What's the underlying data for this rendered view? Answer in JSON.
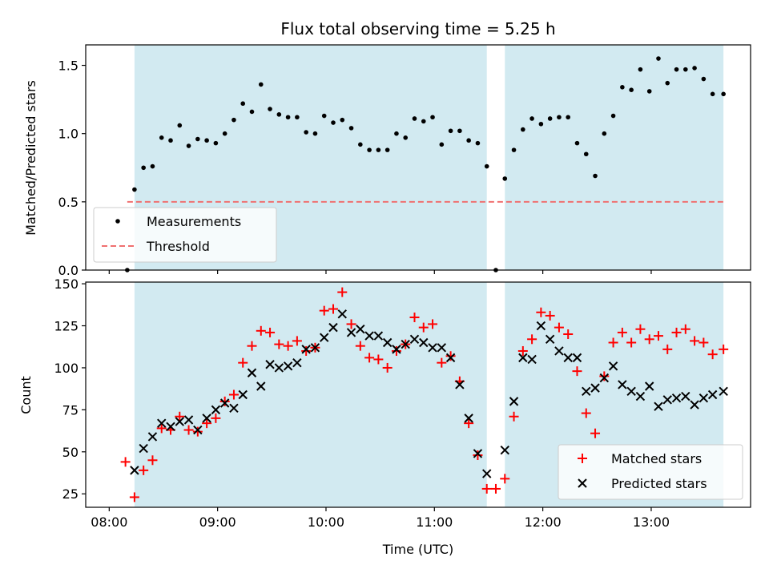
{
  "colors": {
    "observing_window": "#add8e6",
    "measurement": "#000000",
    "threshold": "#f07070",
    "matched": "#ff0000",
    "predicted": "#000000"
  },
  "chart_data": [
    {
      "type": "scatter",
      "title": "Flux total observing time = 5.25 h",
      "xlabel": "",
      "ylabel": "Matched/Predicted stars",
      "xlim": [
        "07:47",
        "13:55"
      ],
      "ylim": [
        0,
        1.65
      ],
      "yticks": [
        0.0,
        0.5,
        1.0,
        1.5
      ],
      "ytick_labels": [
        "0.0",
        "0.5",
        "1.0",
        "1.5"
      ],
      "xticks": [
        "08:00",
        "09:00",
        "10:00",
        "11:00",
        "12:00",
        "13:00"
      ],
      "observing_windows": [
        [
          "08:14",
          "11:29"
        ],
        [
          "11:39",
          "13:40"
        ]
      ],
      "threshold": {
        "value": 0.5,
        "x_start": "08:10",
        "x_end": "13:40"
      },
      "legend": {
        "position": "lower-left",
        "entries": [
          "Measurements",
          "Threshold"
        ]
      },
      "series": [
        {
          "name": "Measurements",
          "marker": "dot",
          "points": [
            [
              "08:10",
              0.0
            ],
            [
              "08:14",
              0.59
            ],
            [
              "08:19",
              0.75
            ],
            [
              "08:24",
              0.76
            ],
            [
              "08:29",
              0.97
            ],
            [
              "08:34",
              0.95
            ],
            [
              "08:39",
              1.06
            ],
            [
              "08:44",
              0.91
            ],
            [
              "08:49",
              0.96
            ],
            [
              "08:54",
              0.95
            ],
            [
              "08:59",
              0.93
            ],
            [
              "09:04",
              1.0
            ],
            [
              "09:09",
              1.1
            ],
            [
              "09:14",
              1.22
            ],
            [
              "09:19",
              1.16
            ],
            [
              "09:24",
              1.36
            ],
            [
              "09:29",
              1.18
            ],
            [
              "09:34",
              1.14
            ],
            [
              "09:39",
              1.12
            ],
            [
              "09:44",
              1.12
            ],
            [
              "09:49",
              1.01
            ],
            [
              "09:54",
              1.0
            ],
            [
              "09:59",
              1.13
            ],
            [
              "10:04",
              1.08
            ],
            [
              "10:09",
              1.1
            ],
            [
              "10:14",
              1.04
            ],
            [
              "10:19",
              0.92
            ],
            [
              "10:24",
              0.88
            ],
            [
              "10:29",
              0.88
            ],
            [
              "10:34",
              0.88
            ],
            [
              "10:39",
              1.0
            ],
            [
              "10:44",
              0.97
            ],
            [
              "10:49",
              1.11
            ],
            [
              "10:54",
              1.09
            ],
            [
              "10:59",
              1.12
            ],
            [
              "11:04",
              0.92
            ],
            [
              "11:09",
              1.02
            ],
            [
              "11:14",
              1.02
            ],
            [
              "11:19",
              0.95
            ],
            [
              "11:24",
              0.93
            ],
            [
              "11:29",
              0.76
            ],
            [
              "11:34",
              0.0
            ],
            [
              "11:39",
              0.67
            ],
            [
              "11:44",
              0.88
            ],
            [
              "11:49",
              1.03
            ],
            [
              "11:54",
              1.11
            ],
            [
              "11:59",
              1.07
            ],
            [
              "12:04",
              1.11
            ],
            [
              "12:09",
              1.12
            ],
            [
              "12:14",
              1.12
            ],
            [
              "12:19",
              0.93
            ],
            [
              "12:24",
              0.85
            ],
            [
              "12:29",
              0.69
            ],
            [
              "12:34",
              1.0
            ],
            [
              "12:39",
              1.13
            ],
            [
              "12:44",
              1.34
            ],
            [
              "12:49",
              1.32
            ],
            [
              "12:54",
              1.47
            ],
            [
              "12:59",
              1.31
            ],
            [
              "13:04",
              1.55
            ],
            [
              "13:09",
              1.37
            ],
            [
              "13:14",
              1.47
            ],
            [
              "13:19",
              1.47
            ],
            [
              "13:24",
              1.48
            ],
            [
              "13:29",
              1.4
            ],
            [
              "13:34",
              1.29
            ],
            [
              "13:40",
              1.29
            ]
          ]
        }
      ]
    },
    {
      "type": "scatter",
      "title": "",
      "xlabel": "Time (UTC)",
      "ylabel": "Count",
      "xlim": [
        "07:47",
        "13:55"
      ],
      "ylim": [
        17,
        151
      ],
      "yticks": [
        25,
        50,
        75,
        100,
        125,
        150
      ],
      "ytick_labels": [
        "25",
        "50",
        "75",
        "100",
        "125",
        "150"
      ],
      "xticks": [
        "08:00",
        "09:00",
        "10:00",
        "11:00",
        "12:00",
        "13:00"
      ],
      "xtick_labels": [
        "08:00",
        "09:00",
        "10:00",
        "11:00",
        "12:00",
        "13:00"
      ],
      "observing_windows": [
        [
          "08:14",
          "11:29"
        ],
        [
          "11:39",
          "13:40"
        ]
      ],
      "legend": {
        "position": "lower-right",
        "entries": [
          "Matched stars",
          "Predicted stars"
        ]
      },
      "series": [
        {
          "name": "Matched stars",
          "marker": "plus",
          "points": [
            [
              "08:09",
              44
            ],
            [
              "08:14",
              23
            ],
            [
              "08:19",
              39
            ],
            [
              "08:24",
              45
            ],
            [
              "08:29",
              64
            ],
            [
              "08:34",
              63
            ],
            [
              "08:39",
              71
            ],
            [
              "08:44",
              63
            ],
            [
              "08:49",
              62
            ],
            [
              "08:54",
              67
            ],
            [
              "08:59",
              70
            ],
            [
              "09:04",
              80
            ],
            [
              "09:09",
              84
            ],
            [
              "09:14",
              103
            ],
            [
              "09:19",
              113
            ],
            [
              "09:24",
              122
            ],
            [
              "09:29",
              121
            ],
            [
              "09:34",
              114
            ],
            [
              "09:39",
              113
            ],
            [
              "09:44",
              116
            ],
            [
              "09:49",
              110
            ],
            [
              "09:54",
              112
            ],
            [
              "09:59",
              134
            ],
            [
              "10:04",
              135
            ],
            [
              "10:09",
              145
            ],
            [
              "10:14",
              126
            ],
            [
              "10:19",
              113
            ],
            [
              "10:24",
              106
            ],
            [
              "10:29",
              105
            ],
            [
              "10:34",
              100
            ],
            [
              "10:39",
              110
            ],
            [
              "10:44",
              114
            ],
            [
              "10:49",
              130
            ],
            [
              "10:54",
              124
            ],
            [
              "10:59",
              126
            ],
            [
              "11:04",
              103
            ],
            [
              "11:09",
              107
            ],
            [
              "11:14",
              92
            ],
            [
              "11:19",
              67
            ],
            [
              "11:24",
              48
            ],
            [
              "11:29",
              28
            ],
            [
              "11:34",
              28
            ],
            [
              "11:39",
              34
            ],
            [
              "11:44",
              71
            ],
            [
              "11:49",
              110
            ],
            [
              "11:54",
              117
            ],
            [
              "11:59",
              133
            ],
            [
              "12:04",
              131
            ],
            [
              "12:09",
              124
            ],
            [
              "12:14",
              120
            ],
            [
              "12:19",
              98
            ],
            [
              "12:24",
              73
            ],
            [
              "12:29",
              61
            ],
            [
              "12:34",
              95
            ],
            [
              "12:39",
              115
            ],
            [
              "12:44",
              121
            ],
            [
              "12:49",
              115
            ],
            [
              "12:54",
              123
            ],
            [
              "12:59",
              117
            ],
            [
              "13:04",
              119
            ],
            [
              "13:09",
              111
            ],
            [
              "13:14",
              121
            ],
            [
              "13:19",
              123
            ],
            [
              "13:24",
              116
            ],
            [
              "13:29",
              115
            ],
            [
              "13:34",
              108
            ],
            [
              "13:40",
              111
            ]
          ]
        },
        {
          "name": "Predicted stars",
          "marker": "x",
          "points": [
            [
              "08:14",
              39
            ],
            [
              "08:19",
              52
            ],
            [
              "08:24",
              59
            ],
            [
              "08:29",
              67
            ],
            [
              "08:34",
              65
            ],
            [
              "08:39",
              68
            ],
            [
              "08:44",
              69
            ],
            [
              "08:49",
              63
            ],
            [
              "08:54",
              70
            ],
            [
              "08:59",
              75
            ],
            [
              "09:04",
              79
            ],
            [
              "09:09",
              76
            ],
            [
              "09:14",
              84
            ],
            [
              "09:19",
              97
            ],
            [
              "09:24",
              89
            ],
            [
              "09:29",
              102
            ],
            [
              "09:34",
              100
            ],
            [
              "09:39",
              101
            ],
            [
              "09:44",
              103
            ],
            [
              "09:49",
              111
            ],
            [
              "09:54",
              112
            ],
            [
              "09:59",
              118
            ],
            [
              "10:04",
              124
            ],
            [
              "10:09",
              132
            ],
            [
              "10:14",
              121
            ],
            [
              "10:19",
              123
            ],
            [
              "10:24",
              119
            ],
            [
              "10:29",
              119
            ],
            [
              "10:34",
              115
            ],
            [
              "10:39",
              111
            ],
            [
              "10:44",
              114
            ],
            [
              "10:49",
              117
            ],
            [
              "10:54",
              115
            ],
            [
              "10:59",
              112
            ],
            [
              "11:04",
              112
            ],
            [
              "11:09",
              106
            ],
            [
              "11:14",
              90
            ],
            [
              "11:19",
              70
            ],
            [
              "11:24",
              49
            ],
            [
              "11:29",
              37
            ],
            [
              "11:39",
              51
            ],
            [
              "11:44",
              80
            ],
            [
              "11:49",
              106
            ],
            [
              "11:54",
              105
            ],
            [
              "11:59",
              125
            ],
            [
              "12:04",
              117
            ],
            [
              "12:09",
              110
            ],
            [
              "12:14",
              106
            ],
            [
              "12:19",
              106
            ],
            [
              "12:24",
              86
            ],
            [
              "12:29",
              88
            ],
            [
              "12:34",
              94
            ],
            [
              "12:39",
              101
            ],
            [
              "12:44",
              90
            ],
            [
              "12:49",
              86
            ],
            [
              "12:54",
              83
            ],
            [
              "12:59",
              89
            ],
            [
              "13:04",
              77
            ],
            [
              "13:09",
              81
            ],
            [
              "13:14",
              82
            ],
            [
              "13:19",
              83
            ],
            [
              "13:24",
              78
            ],
            [
              "13:29",
              82
            ],
            [
              "13:34",
              84
            ],
            [
              "13:40",
              86
            ]
          ]
        }
      ]
    }
  ]
}
